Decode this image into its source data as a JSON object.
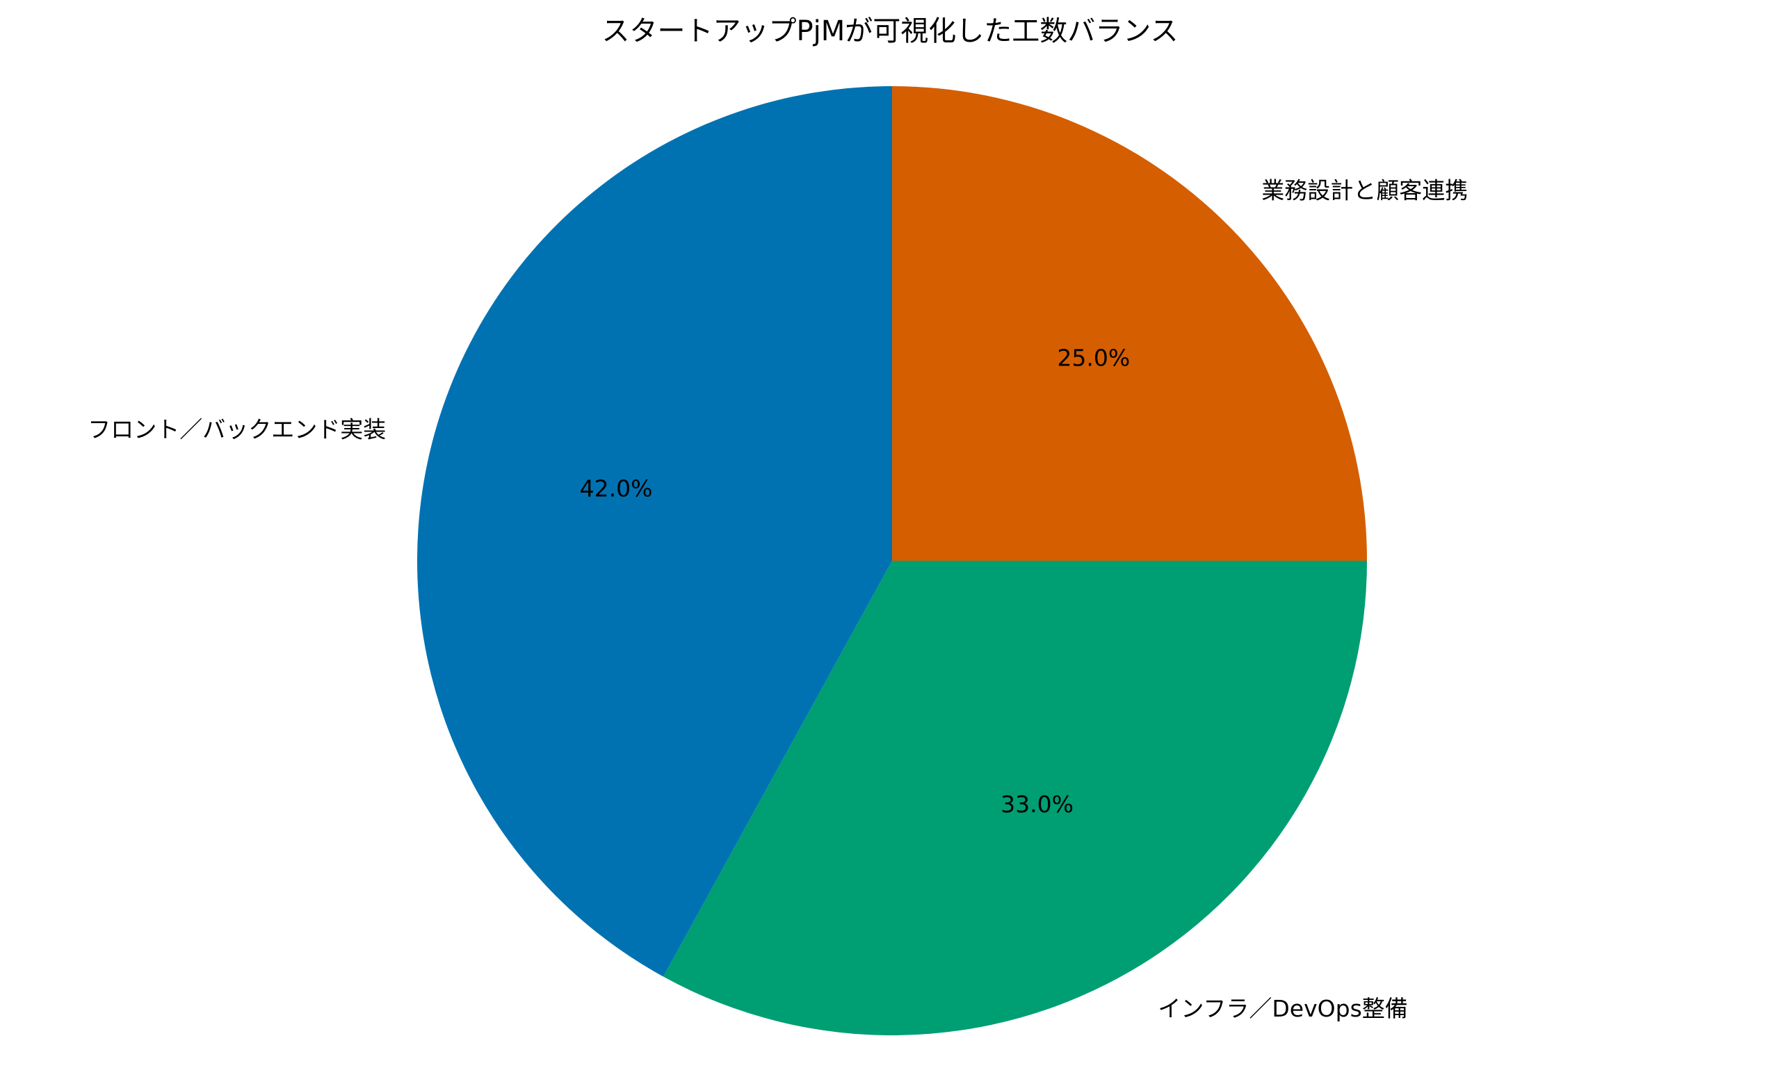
{
  "chart_data": {
    "type": "pie",
    "title": "スタートアップPjMが可視化した工数バランス",
    "start_angle": "top",
    "direction": "clockwise",
    "legend": "none",
    "slices": [
      {
        "label": "業務設計と顧客連携",
        "value": 25.0,
        "display": "25.0%",
        "color": "#D55E00"
      },
      {
        "label": "インフラ／DevOps整備",
        "value": 33.0,
        "display": "33.0%",
        "color": "#009E73"
      },
      {
        "label": "フロント／バックエンド実装",
        "value": 42.0,
        "display": "42.0%",
        "color": "#0072B2"
      }
    ]
  }
}
